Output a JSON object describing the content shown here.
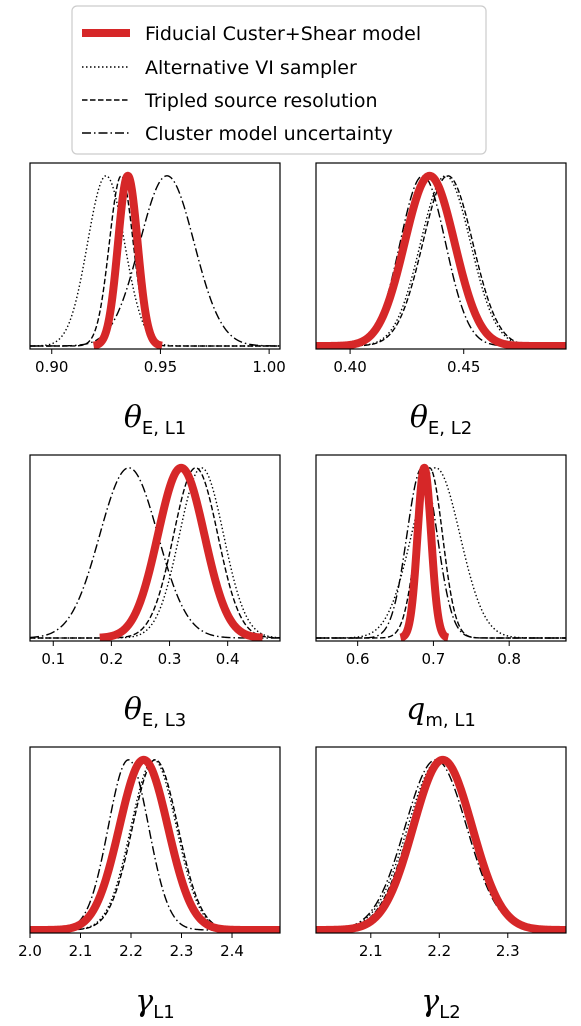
{
  "legend": {
    "placement": "top-center",
    "entries": [
      {
        "label": "Fiducial Custer+Shear model",
        "style": "solid",
        "color": "#d62728"
      },
      {
        "label": "Alternative VI sampler",
        "style": "dotted",
        "color": "#000000"
      },
      {
        "label": "Tripled source resolution",
        "style": "dashed",
        "color": "#000000"
      },
      {
        "label": "Cluster model uncertainty",
        "style": "dashdot",
        "color": "#000000"
      }
    ]
  },
  "chart_data": [
    {
      "type": "line",
      "xlabel_symbol": "θ",
      "xlabel_sub": "E, L1",
      "xlim": [
        0.89,
        1.005
      ],
      "xticks": [
        0.9,
        0.95,
        1.0
      ],
      "xtick_labels": [
        "0.90",
        "0.95",
        "1.00"
      ],
      "series": [
        {
          "style": "solid",
          "mu": 0.935,
          "sigma": 0.0045
        },
        {
          "style": "dotted",
          "mu": 0.925,
          "sigma": 0.0085
        },
        {
          "style": "dashed",
          "mu": 0.932,
          "sigma": 0.0055
        },
        {
          "style": "dashdot",
          "mu": 0.953,
          "sigma": 0.0125
        }
      ]
    },
    {
      "type": "line",
      "xlabel_symbol": "θ",
      "xlabel_sub": "E, L2",
      "xlim": [
        0.385,
        0.495
      ],
      "xticks": [
        0.4,
        0.45
      ],
      "xtick_labels": [
        "0.40",
        "0.45"
      ],
      "series": [
        {
          "style": "solid",
          "mu": 0.435,
          "sigma": 0.011
        },
        {
          "style": "dotted",
          "mu": 0.442,
          "sigma": 0.011
        },
        {
          "style": "dashed",
          "mu": 0.443,
          "sigma": 0.011
        },
        {
          "style": "dashdot",
          "mu": 0.432,
          "sigma": 0.01
        }
      ]
    },
    {
      "type": "line",
      "xlabel_symbol": "θ",
      "xlabel_sub": "E, L3",
      "xlim": [
        0.06,
        0.49
      ],
      "xticks": [
        0.1,
        0.2,
        0.3,
        0.4
      ],
      "xtick_labels": [
        "0.1",
        "0.2",
        "0.3",
        "0.4"
      ],
      "series": [
        {
          "style": "solid",
          "mu": 0.32,
          "sigma": 0.04
        },
        {
          "style": "dotted",
          "mu": 0.355,
          "sigma": 0.038
        },
        {
          "style": "dashed",
          "mu": 0.345,
          "sigma": 0.038
        },
        {
          "style": "dashdot",
          "mu": 0.23,
          "sigma": 0.05
        }
      ]
    },
    {
      "type": "line",
      "xlabel_symbol": "q",
      "xlabel_sub": "m, L1",
      "xlim": [
        0.545,
        0.875
      ],
      "xticks": [
        0.6,
        0.7,
        0.8
      ],
      "xtick_labels": [
        "0.6",
        "0.7",
        "0.8"
      ],
      "series": [
        {
          "style": "solid",
          "mu": 0.688,
          "sigma": 0.009
        },
        {
          "style": "dotted",
          "mu": 0.703,
          "sigma": 0.032
        },
        {
          "style": "dashed",
          "mu": 0.695,
          "sigma": 0.017
        },
        {
          "style": "dashdot",
          "mu": 0.685,
          "sigma": 0.02
        }
      ]
    },
    {
      "type": "line",
      "xlabel_symbol": "γ",
      "xlabel_sub": "L1",
      "xlim": [
        2.0,
        2.495
      ],
      "xticks": [
        2.0,
        2.1,
        2.2,
        2.3,
        2.4
      ],
      "xtick_labels": [
        "2.0",
        "2.1",
        "2.2",
        "2.3",
        "2.4"
      ],
      "series": [
        {
          "style": "solid",
          "mu": 2.225,
          "sigma": 0.048
        },
        {
          "style": "dotted",
          "mu": 2.245,
          "sigma": 0.045
        },
        {
          "style": "dashed",
          "mu": 2.248,
          "sigma": 0.045
        },
        {
          "style": "dashdot",
          "mu": 2.195,
          "sigma": 0.04
        }
      ]
    },
    {
      "type": "line",
      "xlabel_symbol": "γ",
      "xlabel_sub": "L2",
      "xlim": [
        2.02,
        2.385
      ],
      "xticks": [
        2.1,
        2.2,
        2.3
      ],
      "xtick_labels": [
        "2.1",
        "2.2",
        "2.3"
      ],
      "series": [
        {
          "style": "solid",
          "mu": 2.205,
          "sigma": 0.043
        },
        {
          "style": "dotted",
          "mu": 2.2,
          "sigma": 0.046
        },
        {
          "style": "dashed",
          "mu": 2.202,
          "sigma": 0.045
        },
        {
          "style": "dashdot",
          "mu": 2.195,
          "sigma": 0.045
        }
      ]
    }
  ]
}
